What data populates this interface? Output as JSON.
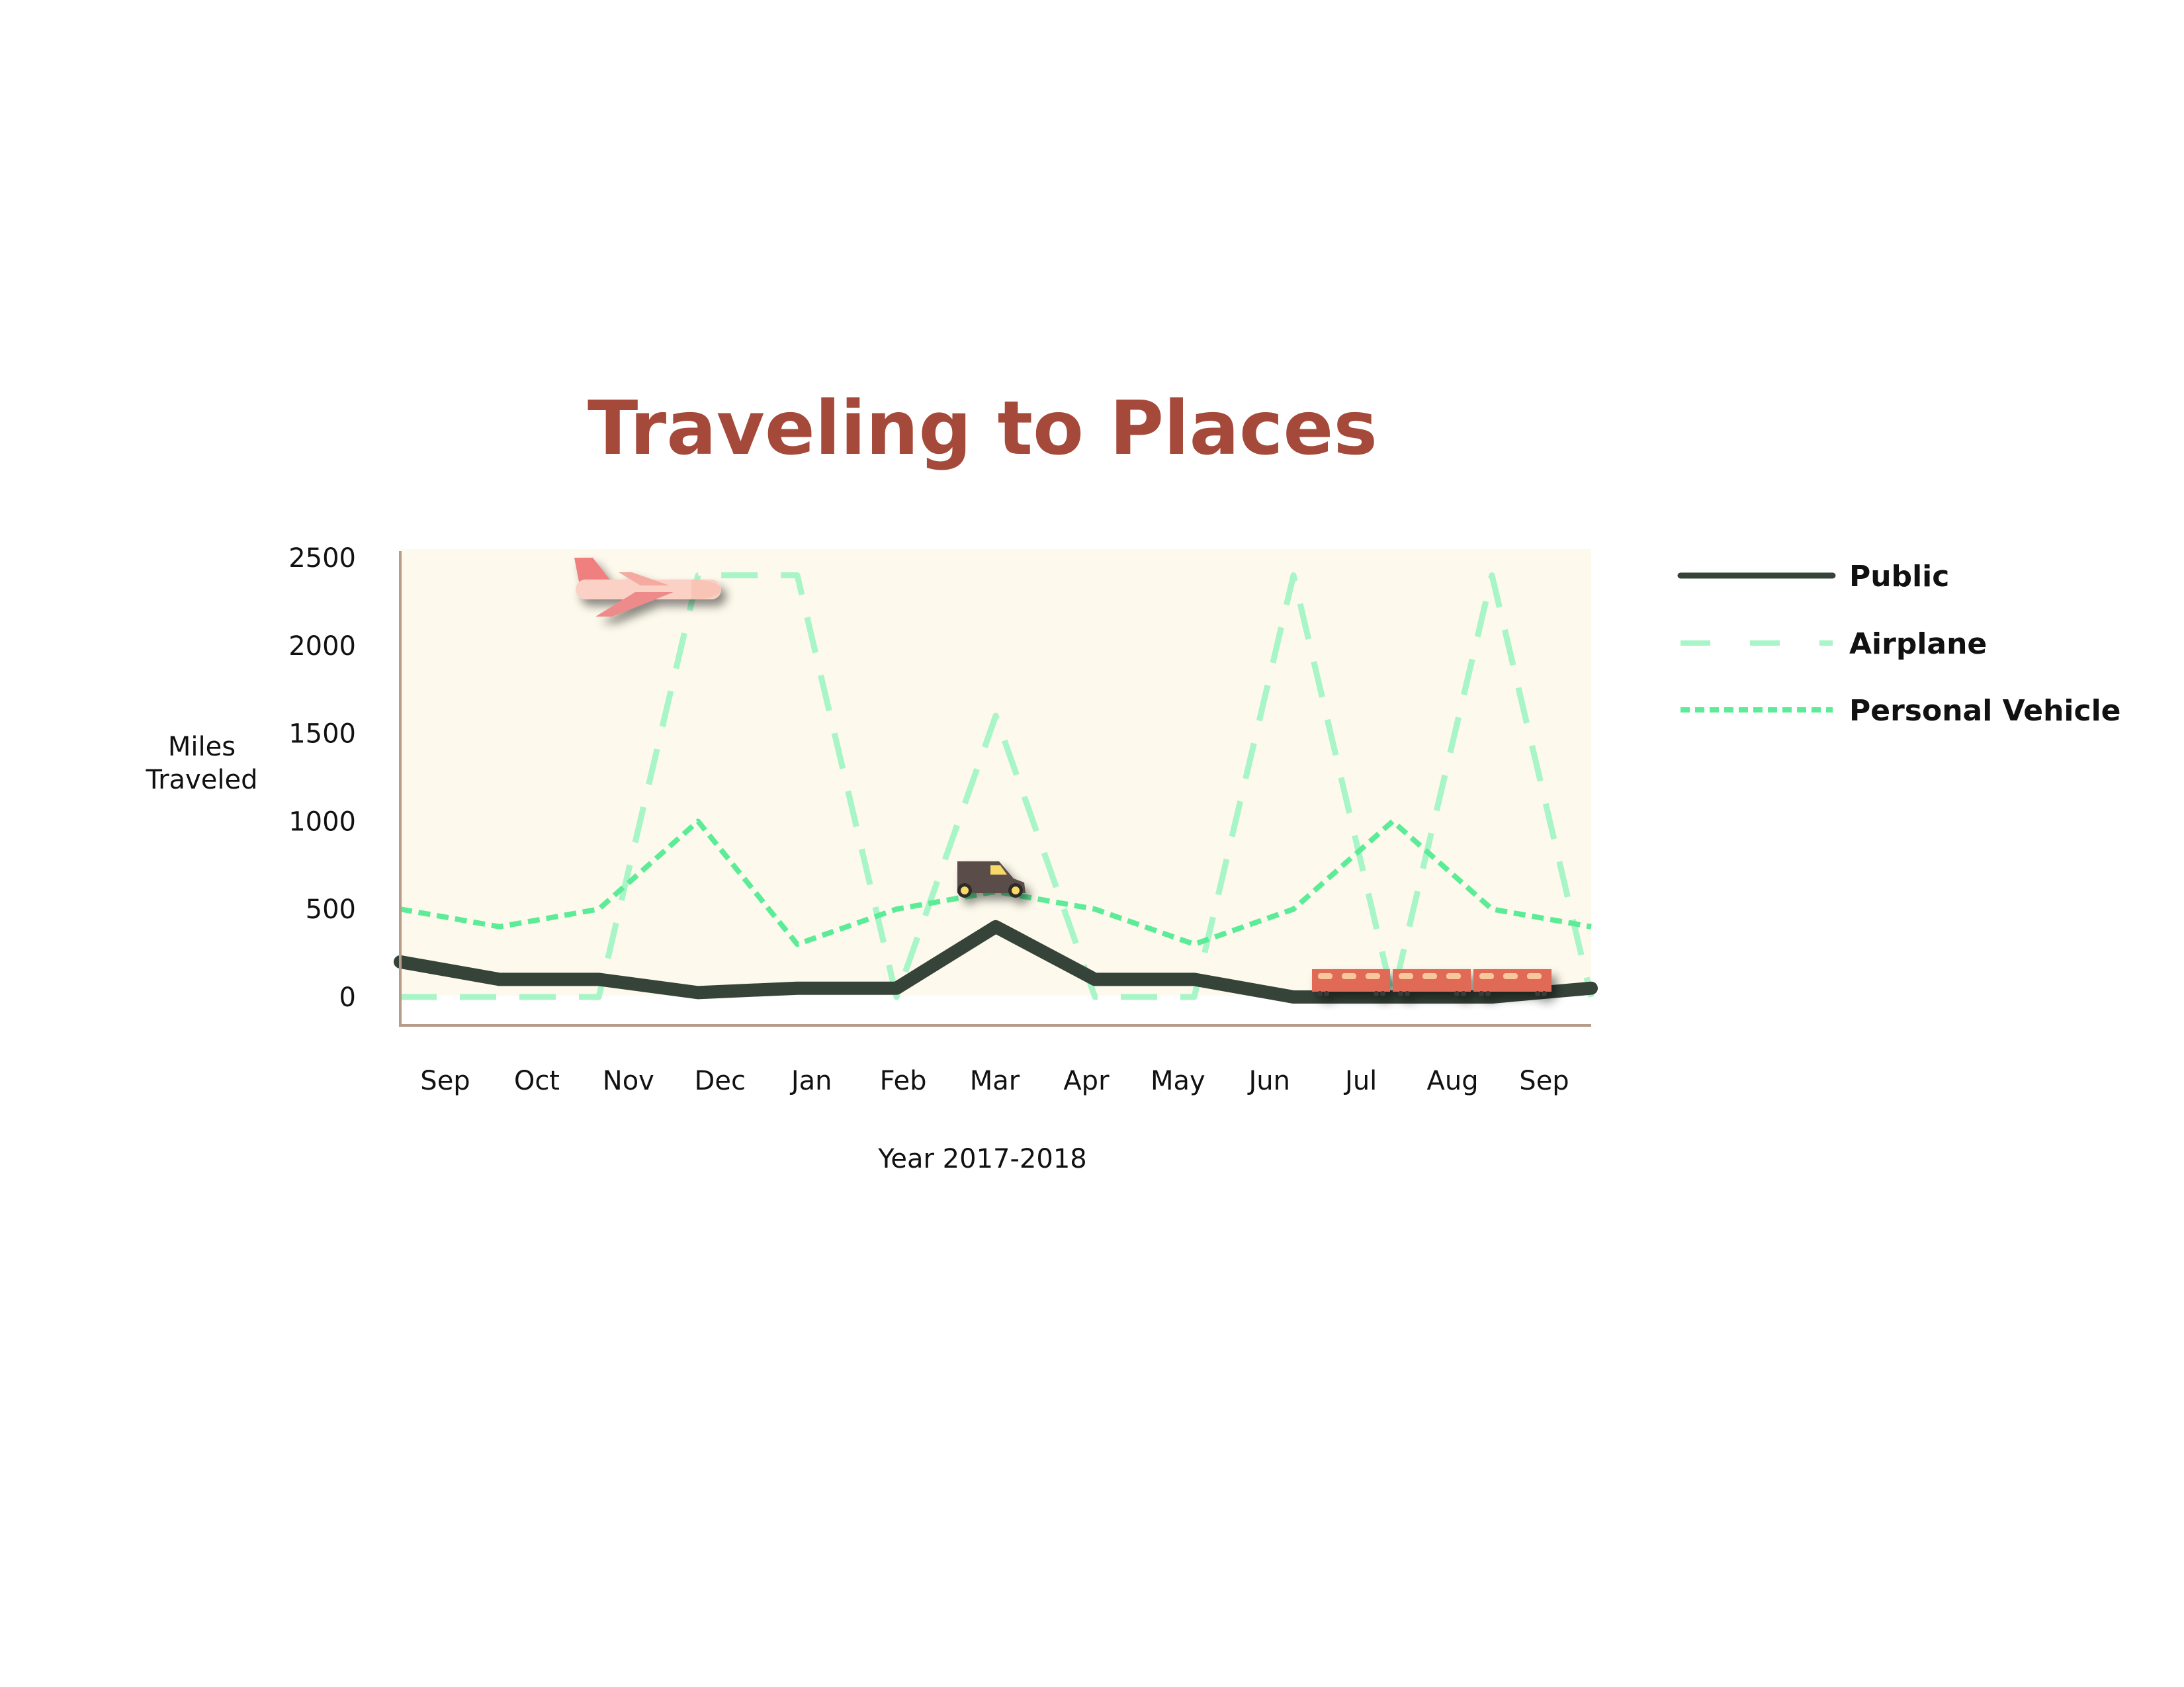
{
  "chart_data": {
    "type": "line",
    "title": "Traveling to Places",
    "xlabel": "Year 2017-2018",
    "ylabel": "Miles Traveled",
    "ylabel_lines": [
      "Miles",
      "Traveled"
    ],
    "categories": [
      "Sep",
      "Oct",
      "Nov",
      "Dec",
      "Jan",
      "Feb",
      "Mar",
      "Apr",
      "May",
      "Jun",
      "Jul",
      "Aug",
      "Sep"
    ],
    "y_ticks": [
      0,
      500,
      1000,
      1500,
      2000,
      2500
    ],
    "ylim": [
      0,
      2500
    ],
    "grid": false,
    "legend_position": "right",
    "series": [
      {
        "name": "Public",
        "style": "solid",
        "color": "#354339",
        "values": [
          200,
          100,
          100,
          25,
          50,
          50,
          400,
          100,
          100,
          0,
          0,
          0,
          50
        ]
      },
      {
        "name": "Airplane",
        "style": "long-dash",
        "color": "#a8f5c8",
        "values": [
          0,
          0,
          0,
          2400,
          2400,
          0,
          1600,
          0,
          0,
          2400,
          0,
          2400,
          0
        ]
      },
      {
        "name": "Personal Vehicle",
        "style": "short-dash",
        "color": "#5cec97",
        "values": [
          500,
          400,
          500,
          1000,
          300,
          500,
          600,
          500,
          300,
          500,
          1000,
          500,
          400
        ]
      }
    ],
    "colors": {
      "title": "#a54a3a",
      "plot_background": "#fdf9ec",
      "axis": "#b89c8a",
      "text": "#111111"
    },
    "decorations": [
      "airplane-icon",
      "van-icon",
      "train-icon"
    ]
  }
}
